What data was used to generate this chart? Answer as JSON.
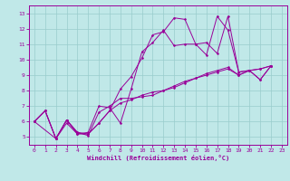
{
  "xlabel": "Windchill (Refroidissement éolien,°C)",
  "bg_color": "#c0e8e8",
  "line_color": "#990099",
  "grid_color": "#99cccc",
  "xlim": [
    -0.5,
    23.5
  ],
  "ylim": [
    4.5,
    13.5
  ],
  "xticks": [
    0,
    1,
    2,
    3,
    4,
    5,
    6,
    7,
    8,
    9,
    10,
    11,
    12,
    13,
    14,
    15,
    16,
    17,
    18,
    19,
    20,
    21,
    22,
    23
  ],
  "yticks": [
    5,
    6,
    7,
    8,
    9,
    10,
    11,
    12,
    13
  ],
  "series": [
    {
      "x": [
        0,
        1,
        2,
        3,
        4,
        5,
        6,
        7,
        8,
        9,
        10,
        11,
        12,
        13,
        14,
        15,
        16,
        17,
        18,
        19,
        20,
        21,
        22
      ],
      "y": [
        6.0,
        6.7,
        4.9,
        6.1,
        5.2,
        5.2,
        5.9,
        6.7,
        8.1,
        8.9,
        10.1,
        11.6,
        11.8,
        12.7,
        12.6,
        11.0,
        11.1,
        10.4,
        12.8,
        9.2,
        9.3,
        8.7,
        9.6
      ]
    },
    {
      "x": [
        0,
        2,
        3,
        4,
        5,
        6,
        7,
        8,
        9,
        10,
        11,
        12,
        13,
        14,
        15,
        16,
        17,
        18,
        19,
        20,
        21,
        22
      ],
      "y": [
        6.0,
        4.9,
        5.9,
        5.2,
        5.3,
        7.0,
        6.9,
        5.9,
        8.1,
        10.5,
        11.1,
        11.9,
        10.9,
        11.0,
        11.0,
        10.3,
        12.8,
        11.9,
        9.2,
        9.3,
        8.7,
        9.6
      ]
    },
    {
      "x": [
        0,
        1,
        2,
        3,
        4,
        5,
        6,
        7,
        8,
        9,
        10,
        11,
        12,
        13,
        14,
        15,
        16,
        17,
        18,
        19,
        20,
        21,
        22
      ],
      "y": [
        6.0,
        6.7,
        4.9,
        6.1,
        5.3,
        5.1,
        6.6,
        7.0,
        7.5,
        7.5,
        7.6,
        7.7,
        8.0,
        8.3,
        8.6,
        8.8,
        9.0,
        9.2,
        9.4,
        9.0,
        9.3,
        9.4,
        9.6
      ]
    },
    {
      "x": [
        0,
        1,
        2,
        3,
        4,
        5,
        6,
        7,
        8,
        9,
        10,
        11,
        12,
        13,
        14,
        15,
        16,
        17,
        18,
        19,
        20,
        21,
        22
      ],
      "y": [
        6.0,
        6.7,
        4.9,
        6.1,
        5.3,
        5.2,
        5.9,
        6.7,
        7.2,
        7.4,
        7.7,
        7.9,
        8.0,
        8.2,
        8.5,
        8.8,
        9.1,
        9.3,
        9.5,
        9.0,
        9.3,
        9.4,
        9.6
      ]
    }
  ]
}
